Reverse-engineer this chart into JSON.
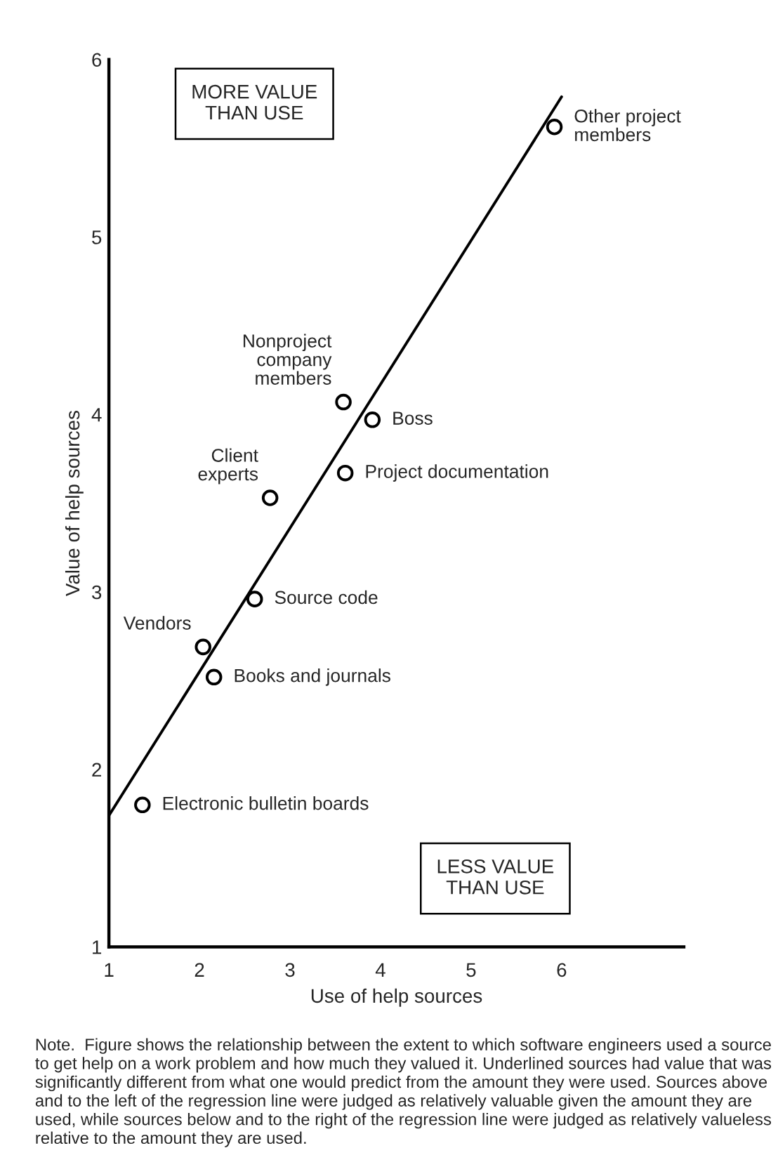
{
  "chart_data": {
    "type": "scatter",
    "xlabel": "Use of help sources",
    "ylabel": "Value of help sources",
    "xlim": [
      1,
      7.35
    ],
    "xticks": [
      1,
      2,
      3,
      4,
      5,
      6
    ],
    "ylim": [
      1,
      6
    ],
    "yticks": [
      1,
      2,
      3,
      4,
      5,
      6
    ],
    "grid": false,
    "legend": false,
    "series": [
      {
        "type": "scatter",
        "marker": "circle",
        "color": "#000000",
        "x": [
          5.92,
          3.59,
          3.91,
          3.61,
          2.78,
          2.61,
          2.04,
          2.16,
          1.37
        ],
        "values": [
          5.62,
          4.07,
          3.97,
          3.67,
          3.53,
          2.96,
          2.69,
          2.52,
          1.8
        ]
      },
      {
        "type": "line",
        "color": "#000000",
        "x": [
          1,
          6
        ],
        "values": [
          1.74,
          5.79
        ]
      }
    ],
    "annotations": [
      "MORE VALUE\nTHAN USE",
      "LESS VALUE\nTHAN USE",
      {
        "text": "Other project\nmembers",
        "x": 5.92,
        "y": 5.62
      },
      {
        "text": "Nonproject\ncompany\nmembers",
        "x": 3.59,
        "y": 4.07
      },
      {
        "text": "Boss",
        "x": 3.91,
        "y": 3.97
      },
      {
        "text": "Project documentation",
        "x": 3.61,
        "y": 3.67
      },
      {
        "text": "Client\nexperts",
        "x": 2.78,
        "y": 3.53
      },
      {
        "text": "Source code",
        "x": 2.61,
        "y": 2.96
      },
      {
        "text": "Vendors",
        "x": 2.04,
        "y": 2.69
      },
      {
        "text": "Books and journals",
        "x": 2.16,
        "y": 2.52
      },
      {
        "text": "Electronic bulletin boards",
        "x": 1.37,
        "y": 1.8
      },
      "Note.  Figure shows the relationship between the extent to which software engineers used a source to get help on a work problem and how much they valued it. Underlined sources had value that was significantly different from what one would predict from the amount they were used. Sources above and to the left of the regression line were judged as relatively valuable given the amount they are used, while sources below and to the right of the regression line were judged as relatively valueless relative to the amount they are used."
    ]
  }
}
